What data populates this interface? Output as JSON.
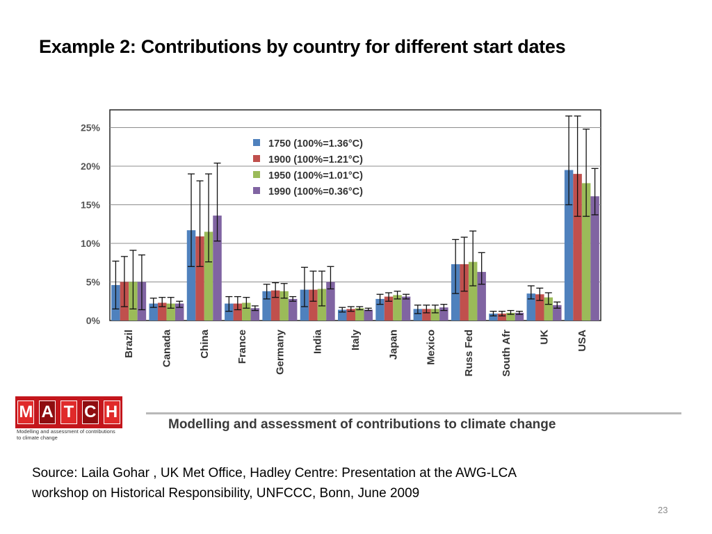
{
  "slide": {
    "title": "Example 2: Contributions  by country for different start dates",
    "source_line1": "Source: Laila Gohar , UK Met Office,  Hadley Centre: Presentation at the AWG-LCA",
    "source_line2": "workshop on Historical Responsibility, UNFCCC, Bonn, June 2009",
    "page_number": "23"
  },
  "logo": {
    "letters": [
      "M",
      "A",
      "T",
      "C",
      "H"
    ],
    "subtitle": "Modelling and assessment of contributions to climate change",
    "banner_text": "Modelling and assessment of contributions to climate change",
    "brand_color": "#c4161c"
  },
  "chart_data": {
    "type": "bar",
    "title": "",
    "xlabel": "",
    "ylabel": "",
    "ylim": [
      0,
      27
    ],
    "yticks": [
      "0%",
      "5%",
      "10%",
      "15%",
      "20%",
      "25%"
    ],
    "ytick_values": [
      0,
      5,
      10,
      15,
      20,
      25
    ],
    "grid": true,
    "legend_position": "top-center",
    "categories": [
      "Brazil",
      "Canada",
      "China",
      "France",
      "Germany",
      "India",
      "Italy",
      "Japan",
      "Mexico",
      "Russ Fed",
      "South Afr",
      "UK",
      "USA"
    ],
    "series": [
      {
        "name": "1750 (100%=1.36°C)",
        "color": "#4f81bd",
        "values": [
          4.6,
          2.2,
          11.7,
          2.2,
          3.8,
          4.0,
          1.4,
          2.8,
          1.5,
          7.3,
          0.9,
          3.5,
          19.5
        ],
        "err_low": [
          1.5,
          1.7,
          7.0,
          1.2,
          2.8,
          1.8,
          1.1,
          2.1,
          0.9,
          3.5,
          0.6,
          2.8,
          15.0
        ],
        "err_high": [
          7.7,
          2.9,
          19.0,
          3.1,
          4.7,
          6.9,
          1.7,
          3.4,
          2.0,
          10.5,
          1.2,
          4.5,
          26.5
        ]
      },
      {
        "name": "1900 (100%=1.21°C)",
        "color": "#c0504d",
        "values": [
          5.0,
          2.3,
          10.9,
          2.2,
          3.9,
          4.0,
          1.5,
          3.1,
          1.5,
          7.3,
          0.9,
          3.4,
          19.0
        ],
        "err_low": [
          1.8,
          1.8,
          7.0,
          1.4,
          3.0,
          2.5,
          1.2,
          2.5,
          1.0,
          3.8,
          0.6,
          2.6,
          13.5
        ],
        "err_high": [
          8.3,
          3.0,
          18.1,
          3.1,
          4.9,
          6.4,
          1.8,
          3.6,
          2.0,
          10.8,
          1.2,
          4.2,
          26.5
        ]
      },
      {
        "name": "1950 (100%=1.01°C)",
        "color": "#9bbb59",
        "values": [
          5.0,
          2.2,
          11.5,
          2.3,
          3.8,
          4.1,
          1.6,
          3.3,
          1.5,
          7.6,
          1.0,
          3.0,
          17.8
        ],
        "err_low": [
          1.5,
          1.6,
          7.6,
          1.6,
          2.9,
          1.9,
          1.4,
          2.8,
          1.0,
          4.5,
          0.8,
          2.1,
          13.5
        ],
        "err_high": [
          9.1,
          3.0,
          19.0,
          3.0,
          4.8,
          6.4,
          1.8,
          3.8,
          2.0,
          11.6,
          1.3,
          3.6,
          24.8
        ]
      },
      {
        "name": "1990 (100%=0.36°C)",
        "color": "#8064a2",
        "values": [
          5.0,
          2.2,
          13.6,
          1.6,
          2.8,
          5.0,
          1.4,
          3.1,
          1.7,
          6.3,
          1.0,
          2.0,
          16.1
        ],
        "err_low": [
          1.4,
          1.7,
          10.3,
          1.3,
          2.5,
          4.1,
          1.3,
          2.8,
          1.3,
          4.7,
          0.8,
          1.6,
          13.7
        ],
        "err_high": [
          8.5,
          2.5,
          20.4,
          1.9,
          3.1,
          7.0,
          1.6,
          3.4,
          2.1,
          8.8,
          1.2,
          2.4,
          19.7
        ]
      }
    ]
  }
}
